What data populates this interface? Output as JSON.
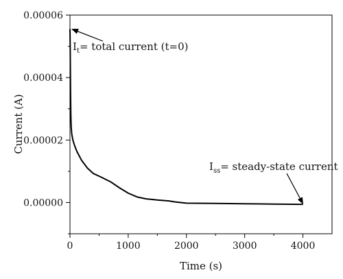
{
  "chart_data": {
    "type": "line",
    "xlabel": "Time (s)",
    "ylabel": "Current (A)",
    "xlim": [
      0,
      4500
    ],
    "ylim": [
      -1e-05,
      6e-05
    ],
    "x_ticks": [
      0,
      1000,
      2000,
      3000,
      4000
    ],
    "x_tick_labels": [
      "0",
      "1000",
      "2000",
      "3000",
      "4000"
    ],
    "y_ticks": [
      0,
      2e-05,
      4e-05,
      6e-05
    ],
    "y_tick_labels": [
      "0.00000",
      "0.00002",
      "0.00004",
      "0.00006"
    ],
    "grid": false,
    "legend": "none",
    "line_color": "#000000",
    "series": [
      {
        "x": [
          0,
          5,
          10,
          15,
          20,
          30,
          50,
          80,
          120,
          200,
          300,
          400,
          550,
          700,
          850,
          1000,
          1150,
          1300,
          1500,
          1700,
          1800,
          2000,
          2500,
          3000,
          3500,
          4000
        ],
        "y": [
          5.55e-05,
          4.8e-05,
          3.6e-05,
          2.8e-05,
          2.45e-05,
          2.2e-05,
          2e-05,
          1.82e-05,
          1.63e-05,
          1.35e-05,
          1.1e-05,
          9.3e-06,
          8e-06,
          6.6e-06,
          4.7e-06,
          3e-06,
          1.8e-06,
          1.2e-06,
          8e-07,
          5e-07,
          2e-07,
          -2e-07,
          -3e-07,
          -4e-07,
          -5e-07,
          -6e-07
        ]
      }
    ],
    "annotations": [
      {
        "prefix": "I",
        "subscript": "t",
        "text": "= total current (t=0)",
        "point": [
          0,
          5.55e-05
        ]
      },
      {
        "prefix": "I",
        "subscript": "ss",
        "text": "= steady-state current",
        "point": [
          4000,
          -6e-07
        ]
      }
    ]
  }
}
